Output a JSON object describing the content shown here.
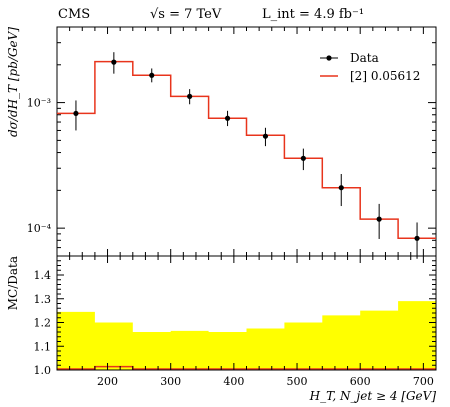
{
  "header": {
    "experiment": "CMS",
    "energy": "√s = 7 TeV",
    "lumi": "L_int = 4.9 fb⁻¹"
  },
  "chart_data": [
    {
      "type": "line",
      "ylabel": "dσ/dH_T [pb/GeV]",
      "yscale": "log",
      "ylim": [
        6e-05,
        0.004
      ],
      "xlim": [
        120,
        720
      ],
      "yticks": [
        {
          "value": 0.001,
          "label": "10⁻³"
        },
        {
          "value": 0.0001,
          "label": "10⁻⁴"
        }
      ],
      "legend": {
        "position": "top-right",
        "entries": [
          {
            "label": "Data",
            "style": "marker",
            "color": "#000000"
          },
          {
            "label": "[2] 0.05612",
            "style": "line",
            "color": "#e8341c"
          }
        ]
      },
      "bin_edges": [
        120,
        180,
        240,
        300,
        360,
        420,
        480,
        540,
        600,
        660,
        720
      ],
      "series": [
        {
          "name": "Data",
          "x": [
            150,
            210,
            270,
            330,
            390,
            450,
            510,
            570,
            630,
            690
          ],
          "y": [
            0.00082,
            0.0021,
            0.00165,
            0.00112,
            0.00075,
            0.00054,
            0.00036,
            0.00021,
            0.000118,
            8.3e-05
          ],
          "err_up": [
            0.00022,
            0.00042,
            0.00022,
            0.00016,
            0.00011,
            9e-05,
            7e-05,
            6e-05,
            3.8e-05,
            2.8e-05
          ],
          "err_down": [
            0.00022,
            0.0004,
            0.0002,
            0.00015,
            0.0001,
            9e-05,
            7e-05,
            6e-05,
            3.6e-05,
            2.6e-05
          ],
          "color": "#000000"
        },
        {
          "name": "[2] 0.05612",
          "values": [
            0.00082,
            0.00212,
            0.00165,
            0.00112,
            0.00075,
            0.00055,
            0.00036,
            0.00021,
            0.000118,
            8.3e-05
          ],
          "color": "#e8341c"
        }
      ]
    },
    {
      "type": "area",
      "ylabel": "MC/Data",
      "xlabel": "H_T, N_jet ≥ 4 [GeV]",
      "xlim": [
        120,
        720
      ],
      "ylim": [
        1.0,
        1.48
      ],
      "xticks": [
        200,
        300,
        400,
        500,
        600,
        700
      ],
      "yticks": [
        1.0,
        1.1,
        1.2,
        1.3,
        1.4
      ],
      "bin_edges": [
        120,
        180,
        240,
        300,
        360,
        420,
        480,
        540,
        600,
        660,
        720
      ],
      "band_color": "#ffff00",
      "series": [
        {
          "name": "band",
          "values": [
            1.245,
            1.2,
            1.16,
            1.165,
            1.16,
            1.175,
            1.2,
            1.23,
            1.25,
            1.29
          ]
        },
        {
          "name": "ratio",
          "values": [
            1.0,
            1.01,
            1.0,
            1.0,
            1.0,
            1.0,
            1.0,
            1.0,
            1.0,
            1.0
          ],
          "color": "#e8341c"
        }
      ]
    }
  ]
}
